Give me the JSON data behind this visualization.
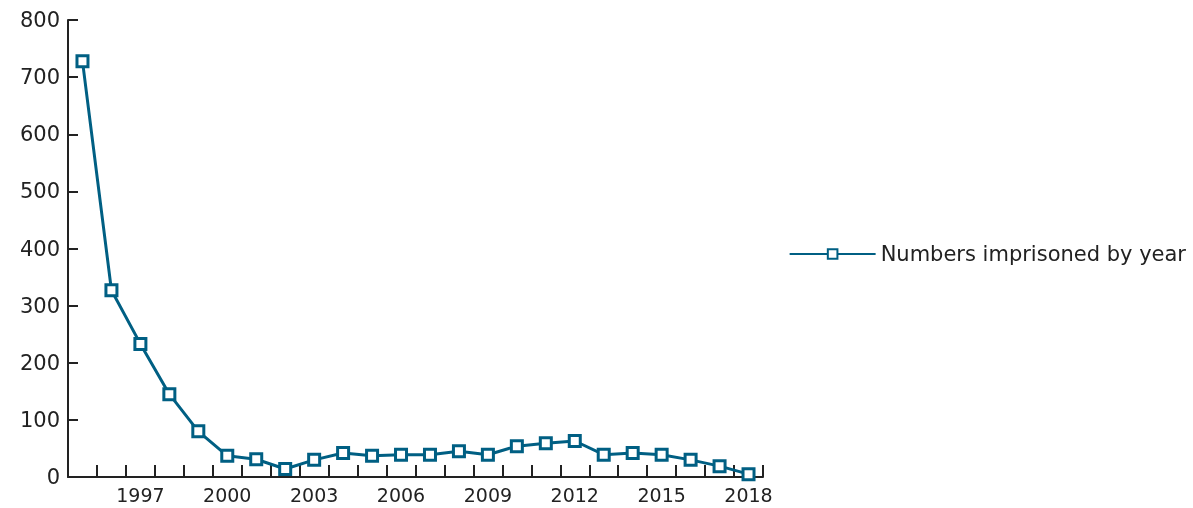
{
  "chart_data": {
    "type": "line",
    "categories": [
      null,
      null,
      "1997",
      null,
      null,
      "2000",
      null,
      null,
      "2003",
      null,
      null,
      "2006",
      null,
      null,
      "2009",
      null,
      null,
      "2012",
      null,
      null,
      "2015",
      null,
      null,
      "2018"
    ],
    "series": [
      {
        "name": "Numbers imprisoned by year",
        "color": "#005f83",
        "values": [
          728,
          327,
          233,
          145,
          80,
          37,
          31,
          14,
          30,
          42,
          37,
          39,
          39,
          45,
          39,
          54,
          59,
          63,
          39,
          42,
          39,
          30,
          19,
          5
        ]
      }
    ],
    "ylim": [
      0,
      800
    ],
    "yticks": [
      0,
      100,
      200,
      300,
      400,
      500,
      600,
      700,
      800
    ],
    "grid": false,
    "legend": "right",
    "marker": "square",
    "line_style": "solid"
  }
}
